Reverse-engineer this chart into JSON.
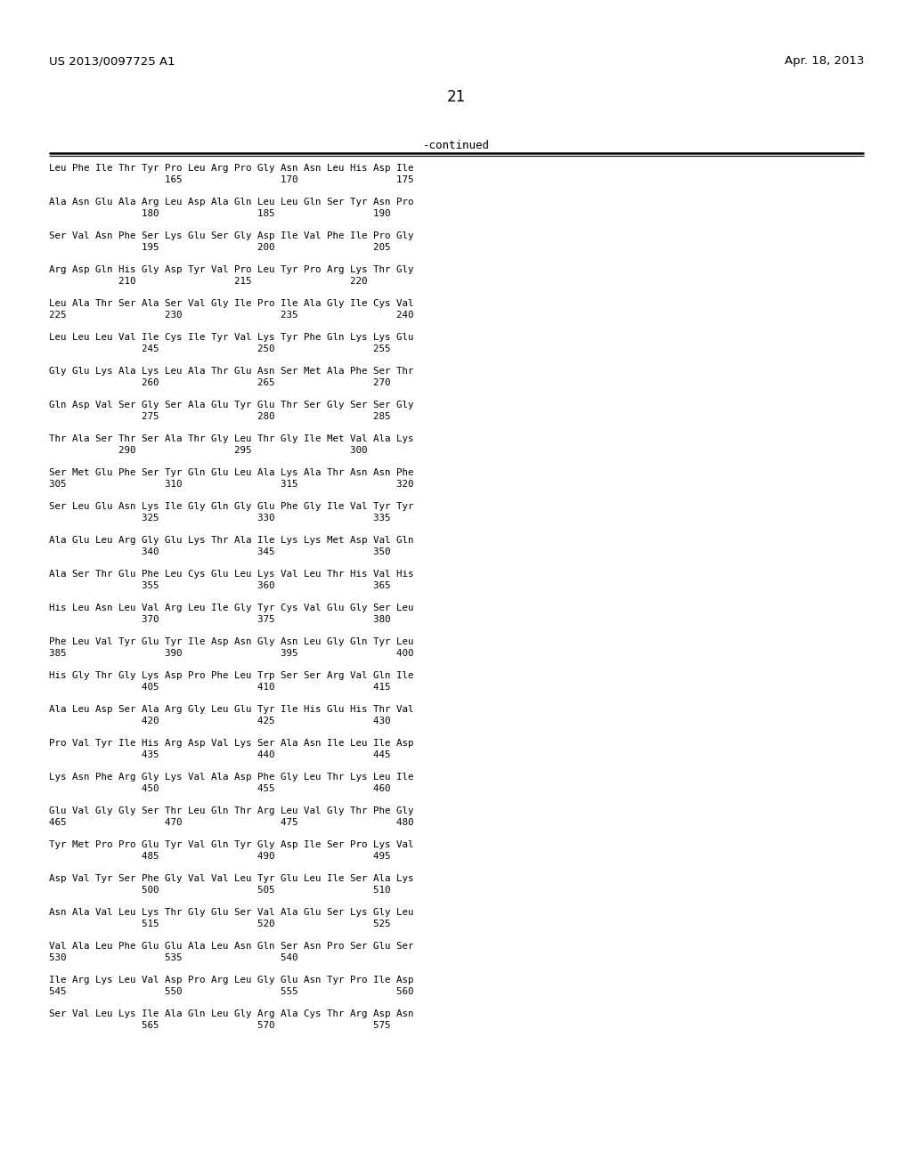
{
  "header_left": "US 2013/0097725 A1",
  "header_right": "Apr. 18, 2013",
  "page_number": "21",
  "continued_label": "-continued",
  "background_color": "#ffffff",
  "text_color": "#000000",
  "seq_lines": [
    [
      "Leu Phe Ile Thr Tyr Pro Leu Arg Pro Gly Asn Asn Leu His Asp Ile",
      "                    165                 170                 175"
    ],
    [
      "Ala Asn Glu Ala Arg Leu Asp Ala Gln Leu Leu Gln Ser Tyr Asn Pro",
      "                180                 185                 190"
    ],
    [
      "Ser Val Asn Phe Ser Lys Glu Ser Gly Asp Ile Val Phe Ile Pro Gly",
      "                195                 200                 205"
    ],
    [
      "Arg Asp Gln His Gly Asp Tyr Val Pro Leu Tyr Pro Arg Lys Thr Gly",
      "            210                 215                 220"
    ],
    [
      "Leu Ala Thr Ser Ala Ser Val Gly Ile Pro Ile Ala Gly Ile Cys Val",
      "225                 230                 235                 240"
    ],
    [
      "Leu Leu Leu Val Ile Cys Ile Tyr Val Lys Tyr Phe Gln Lys Lys Glu",
      "                245                 250                 255"
    ],
    [
      "Gly Glu Lys Ala Lys Leu Ala Thr Glu Asn Ser Met Ala Phe Ser Thr",
      "                260                 265                 270"
    ],
    [
      "Gln Asp Val Ser Gly Ser Ala Glu Tyr Glu Thr Ser Gly Ser Ser Gly",
      "                275                 280                 285"
    ],
    [
      "Thr Ala Ser Thr Ser Ala Thr Gly Leu Thr Gly Ile Met Val Ala Lys",
      "            290                 295                 300"
    ],
    [
      "Ser Met Glu Phe Ser Tyr Gln Glu Leu Ala Lys Ala Thr Asn Asn Phe",
      "305                 310                 315                 320"
    ],
    [
      "Ser Leu Glu Asn Lys Ile Gly Gln Gly Glu Phe Gly Ile Val Tyr Tyr",
      "                325                 330                 335"
    ],
    [
      "Ala Glu Leu Arg Gly Glu Lys Thr Ala Ile Lys Lys Met Asp Val Gln",
      "                340                 345                 350"
    ],
    [
      "Ala Ser Thr Glu Phe Leu Cys Glu Leu Lys Val Leu Thr His Val His",
      "                355                 360                 365"
    ],
    [
      "His Leu Asn Leu Val Arg Leu Ile Gly Tyr Cys Val Glu Gly Ser Leu",
      "                370                 375                 380"
    ],
    [
      "Phe Leu Val Tyr Glu Tyr Ile Asp Asn Gly Asn Leu Gly Gln Tyr Leu",
      "385                 390                 395                 400"
    ],
    [
      "His Gly Thr Gly Lys Asp Pro Phe Leu Trp Ser Ser Arg Val Gln Ile",
      "                405                 410                 415"
    ],
    [
      "Ala Leu Asp Ser Ala Arg Gly Leu Glu Tyr Ile His Glu His Thr Val",
      "                420                 425                 430"
    ],
    [
      "Pro Val Tyr Ile His Arg Asp Val Lys Ser Ala Asn Ile Leu Ile Asp",
      "                435                 440                 445"
    ],
    [
      "Lys Asn Phe Arg Gly Lys Val Ala Asp Phe Gly Leu Thr Lys Leu Ile",
      "                450                 455                 460"
    ],
    [
      "Glu Val Gly Gly Ser Thr Leu Gln Thr Arg Leu Val Gly Thr Phe Gly",
      "465                 470                 475                 480"
    ],
    [
      "Tyr Met Pro Pro Glu Tyr Val Gln Tyr Gly Asp Ile Ser Pro Lys Val",
      "                485                 490                 495"
    ],
    [
      "Asp Val Tyr Ser Phe Gly Val Val Leu Tyr Glu Leu Ile Ser Ala Lys",
      "                500                 505                 510"
    ],
    [
      "Asn Ala Val Leu Lys Thr Gly Glu Ser Val Ala Glu Ser Lys Gly Leu",
      "                515                 520                 525"
    ],
    [
      "Val Ala Leu Phe Glu Glu Ala Leu Asn Gln Ser Asn Pro Ser Glu Ser",
      "530                 535                 540"
    ],
    [
      "Ile Arg Lys Leu Val Asp Pro Arg Leu Gly Glu Asn Tyr Pro Ile Asp",
      "545                 550                 555                 560"
    ],
    [
      "Ser Val Leu Lys Ile Ala Gln Leu Gly Arg Ala Cys Thr Arg Asp Asn",
      "                565                 570                 575"
    ]
  ]
}
